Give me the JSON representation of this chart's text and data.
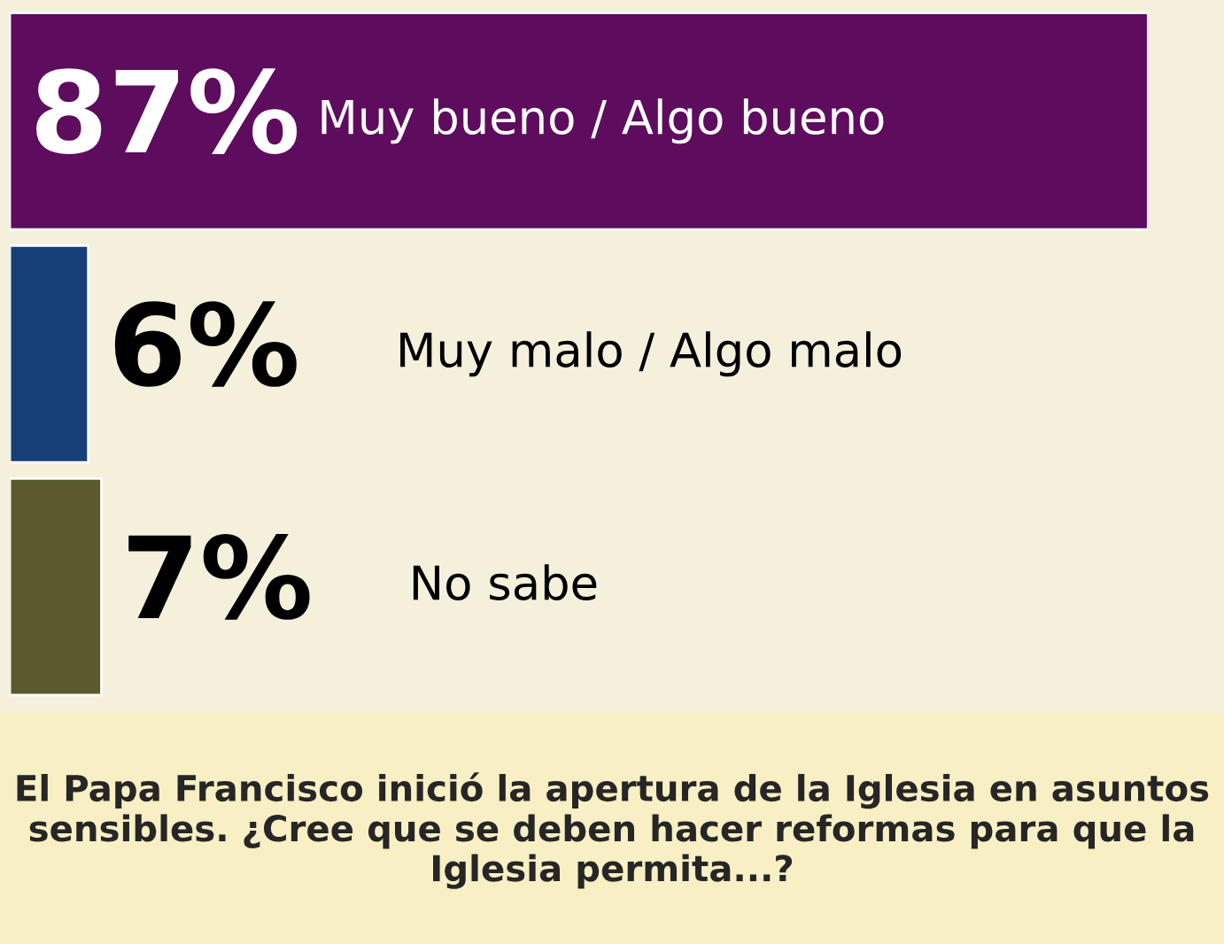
{
  "chart_data": {
    "type": "bar",
    "orientation": "horizontal",
    "title": "El Papa Francisco inició la apertura de la Iglesia en asuntos sensibles. ¿Cree que se deben hacer reformas para que la Iglesia permita...?",
    "categories": [
      "Muy bueno / Algo bueno",
      "Muy malo / Algo malo",
      "No sabe"
    ],
    "values": [
      87,
      6,
      7
    ],
    "colors": [
      "#5e0c5e",
      "#173f78",
      "#5a5a2e"
    ],
    "value_labels": [
      "87%",
      "6%",
      "7%"
    ]
  }
}
